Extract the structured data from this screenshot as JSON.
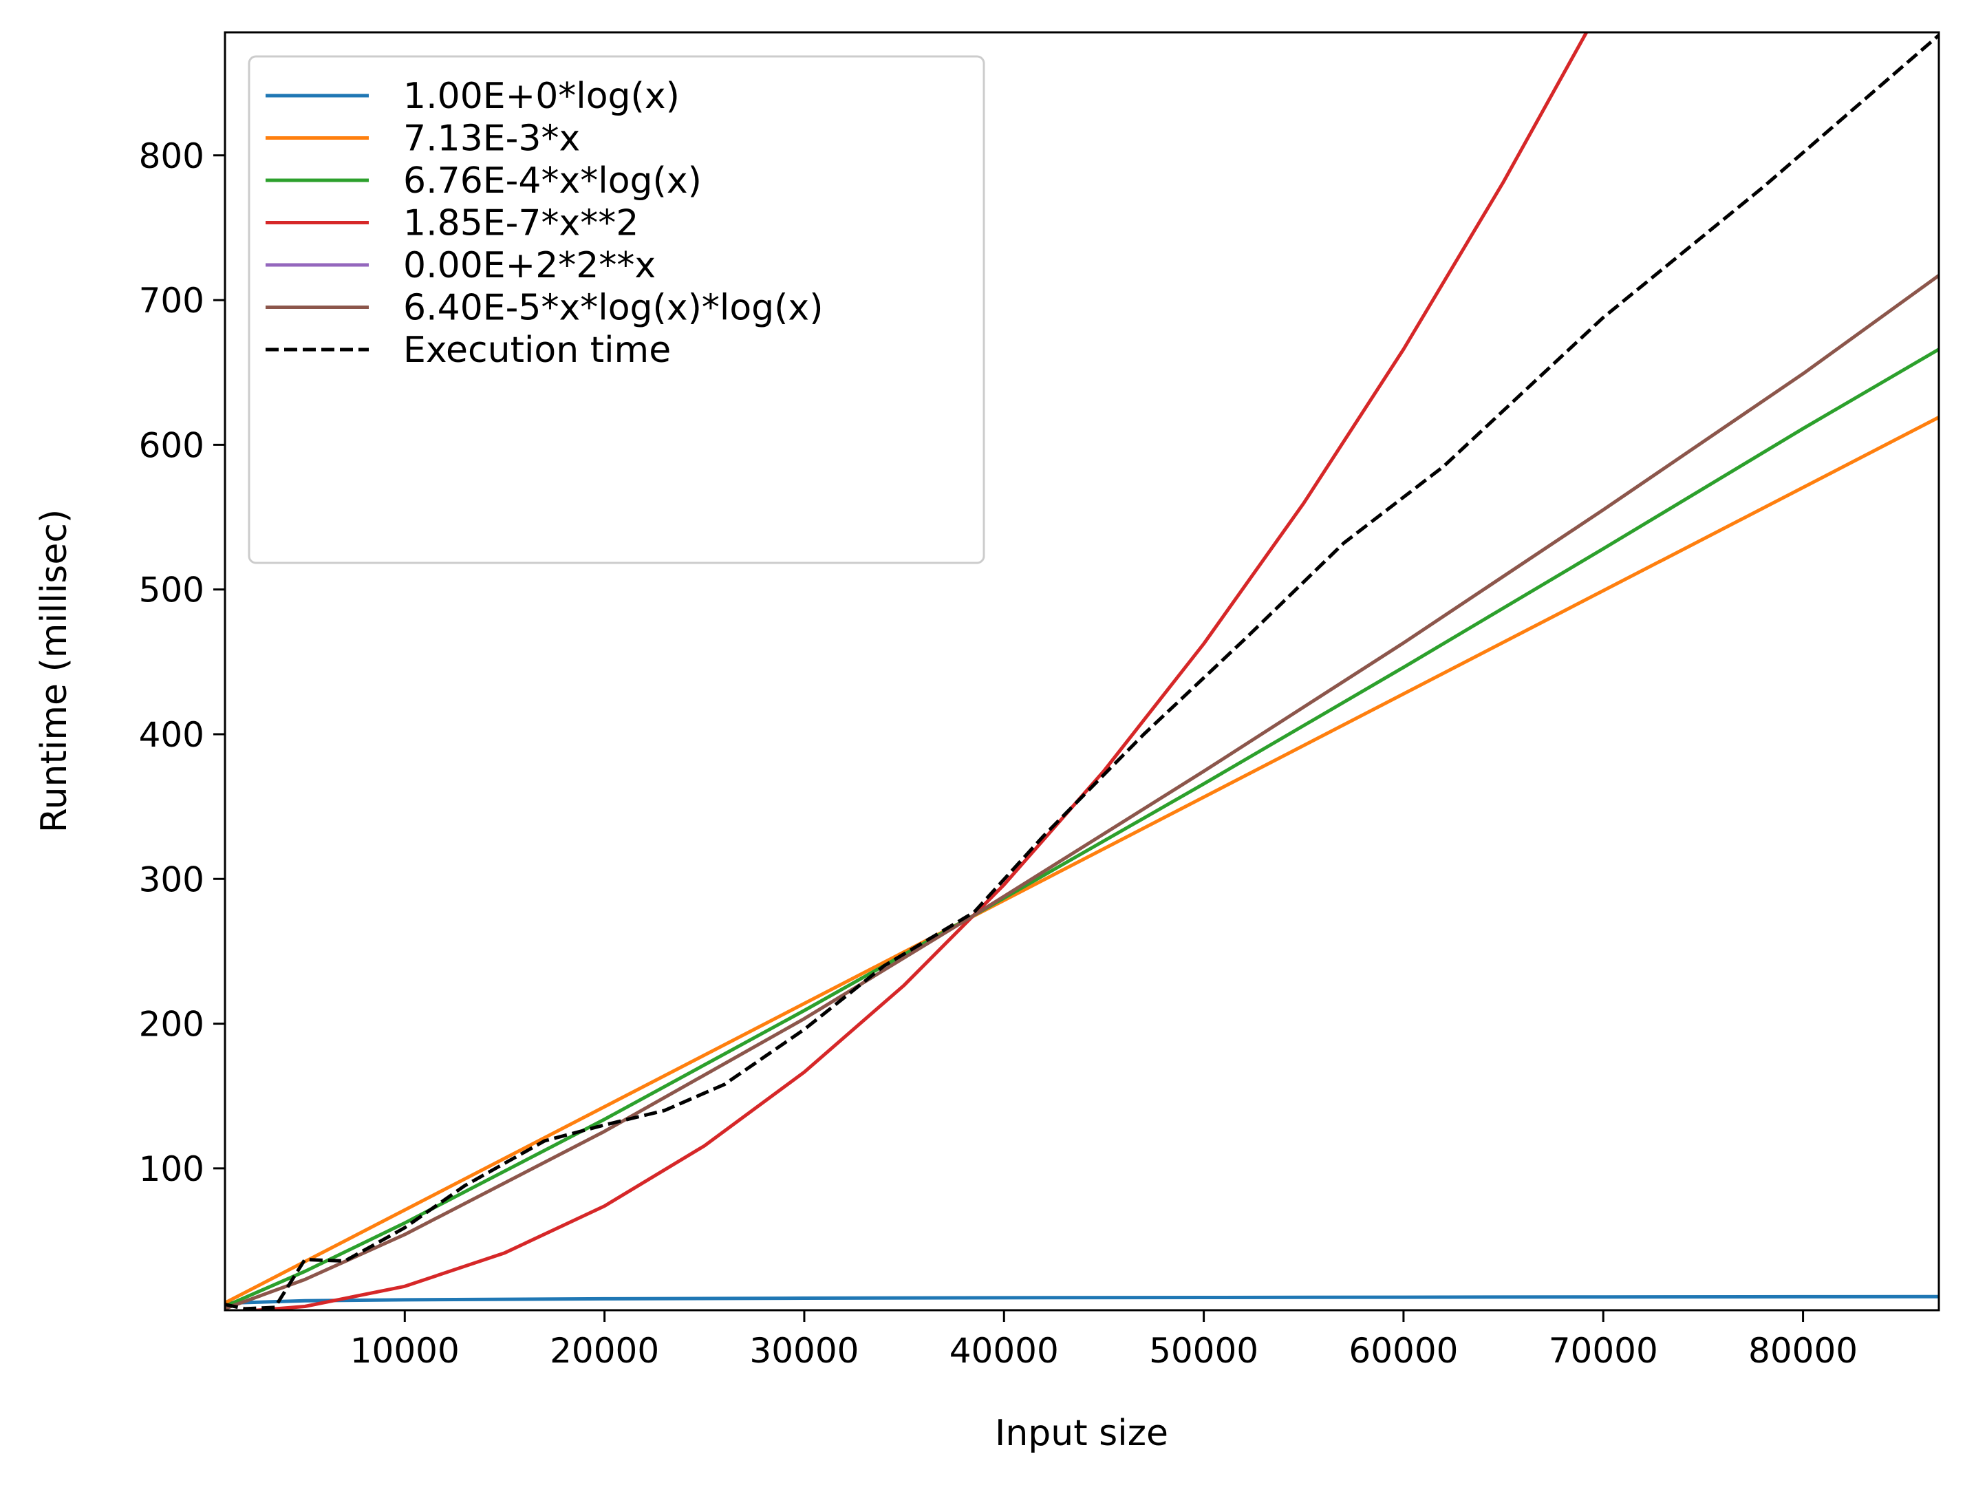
{
  "chart_data": {
    "type": "line",
    "title": "",
    "xlabel": "Input size",
    "ylabel": "Runtime (millisec)",
    "xlim": [
      1000,
      86800
    ],
    "ylim": [
      2,
      885
    ],
    "xticks": [
      10000,
      20000,
      30000,
      40000,
      50000,
      60000,
      70000,
      80000
    ],
    "yticks": [
      100,
      200,
      300,
      400,
      500,
      600,
      700,
      800
    ],
    "grid": false,
    "legend_position": "upper-left",
    "series": [
      {
        "name": "1.00E+0*log(x)",
        "color": "#1f77b4",
        "style": "solid",
        "points": [
          [
            1000,
            6.9
          ],
          [
            5000,
            8.5
          ],
          [
            10000,
            9.2
          ],
          [
            20000,
            9.9
          ],
          [
            30000,
            10.3
          ],
          [
            40000,
            10.6
          ],
          [
            50000,
            10.8
          ],
          [
            60000,
            11.0
          ],
          [
            70000,
            11.2
          ],
          [
            80000,
            11.3
          ],
          [
            86800,
            11.4
          ]
        ]
      },
      {
        "name": "7.13E-3*x",
        "color": "#ff7f0e",
        "style": "solid",
        "points": [
          [
            1000,
            7.1
          ],
          [
            86800,
            619
          ]
        ]
      },
      {
        "name": "6.76E-4*x*log(x)",
        "color": "#2ca02c",
        "style": "solid",
        "points": [
          [
            1000,
            4.7
          ],
          [
            5000,
            28.8
          ],
          [
            10000,
            62.3
          ],
          [
            20000,
            133.9
          ],
          [
            30000,
            209.1
          ],
          [
            38500,
            275
          ],
          [
            50000,
            365.7
          ],
          [
            60000,
            446.2
          ],
          [
            70000,
            528.2
          ],
          [
            80000,
            611.2
          ],
          [
            86800,
            666
          ]
        ]
      },
      {
        "name": "1.85E-7*x**2",
        "color": "#d62728",
        "style": "solid",
        "points": [
          [
            1000,
            0.2
          ],
          [
            5000,
            4.6
          ],
          [
            10000,
            18.5
          ],
          [
            15000,
            41.6
          ],
          [
            20000,
            74.0
          ],
          [
            25000,
            115.6
          ],
          [
            30000,
            166.5
          ],
          [
            35000,
            226.6
          ],
          [
            40000,
            296.0
          ],
          [
            45000,
            374.6
          ],
          [
            50000,
            462.5
          ],
          [
            55000,
            559.6
          ],
          [
            60000,
            666.0
          ],
          [
            65000,
            781.6
          ],
          [
            69200,
            886
          ]
        ]
      },
      {
        "name": "0.00E+2*2**x",
        "color": "#9467bd",
        "style": "solid",
        "points": []
      },
      {
        "name": "6.40E-5*x*log(x)*log(x)",
        "color": "#8c564b",
        "style": "solid",
        "points": [
          [
            1000,
            3.1
          ],
          [
            5000,
            23.2
          ],
          [
            10000,
            54.3
          ],
          [
            20000,
            125.6
          ],
          [
            30000,
            203.4
          ],
          [
            38500,
            275
          ],
          [
            50000,
            374.4
          ],
          [
            60000,
            463.1
          ],
          [
            70000,
            555.1
          ],
          [
            80000,
            649.1
          ],
          [
            86800,
            717
          ]
        ]
      },
      {
        "name": "Execution time",
        "color": "#000000",
        "style": "dashed",
        "points": [
          [
            1000,
            6
          ],
          [
            2000,
            3
          ],
          [
            3500,
            4
          ],
          [
            5000,
            37
          ],
          [
            7000,
            36
          ],
          [
            10000,
            59
          ],
          [
            13000,
            88
          ],
          [
            17000,
            119
          ],
          [
            20000,
            130
          ],
          [
            23000,
            140
          ],
          [
            26000,
            158
          ],
          [
            30000,
            196
          ],
          [
            34000,
            240
          ],
          [
            38500,
            277
          ],
          [
            42000,
            330
          ],
          [
            47000,
            400
          ],
          [
            52000,
            465
          ],
          [
            57000,
            532
          ],
          [
            62000,
            585
          ],
          [
            70000,
            688
          ],
          [
            78000,
            778
          ],
          [
            86800,
            883
          ]
        ]
      }
    ]
  }
}
